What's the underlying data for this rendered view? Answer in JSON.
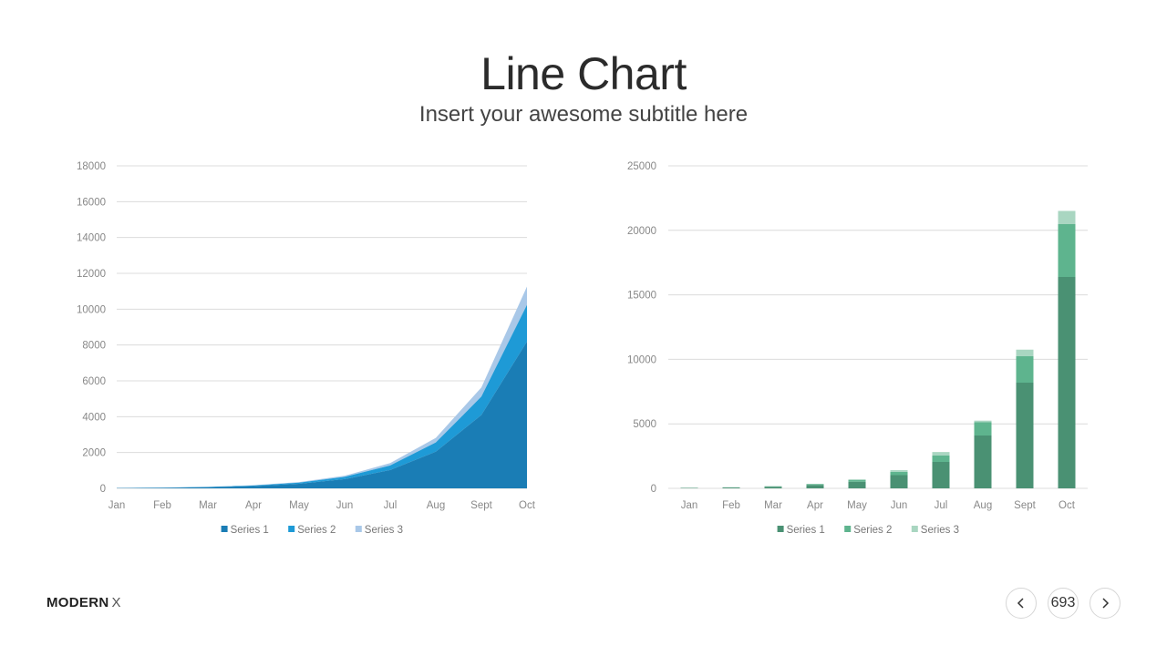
{
  "header": {
    "title": "Line Chart",
    "subtitle": "Insert your awesome subtitle here"
  },
  "footer": {
    "brand_bold": "MODERN",
    "brand_light": "X",
    "page_number": "693",
    "prev_icon": "chevron-left-icon",
    "next_icon": "chevron-right-icon"
  },
  "chart_data": [
    {
      "type": "area",
      "stacked": true,
      "categories": [
        "Jan",
        "Feb",
        "Mar",
        "Apr",
        "May",
        "Jun",
        "Jul",
        "Aug",
        "Sept",
        "Oct"
      ],
      "series": [
        {
          "name": "Series 1",
          "color": "#1a7db5",
          "values": [
            16,
            32,
            64,
            128,
            256,
            512,
            1024,
            2048,
            4096,
            8192
          ]
        },
        {
          "name": "Series 2",
          "color": "#1e9ad6",
          "values": [
            4,
            8,
            16,
            32,
            64,
            128,
            256,
            512,
            1024,
            2048
          ]
        },
        {
          "name": "Series 3",
          "color": "#a9c8e8",
          "values": [
            2,
            4,
            8,
            16,
            32,
            64,
            128,
            256,
            512,
            1024
          ]
        }
      ],
      "ylim": [
        0,
        18000
      ],
      "yticks": [
        0,
        2000,
        4000,
        6000,
        8000,
        10000,
        12000,
        14000,
        16000,
        18000
      ],
      "grid": true,
      "legend": "bottom"
    },
    {
      "type": "bar",
      "stacked": true,
      "categories": [
        "Jan",
        "Feb",
        "Mar",
        "Apr",
        "May",
        "Jun",
        "Jul",
        "Aug",
        "Sept",
        "Oct"
      ],
      "series": [
        {
          "name": "Series 1",
          "color": "#4a9173",
          "values": [
            32,
            64,
            128,
            256,
            512,
            1024,
            2048,
            4096,
            8192,
            16384
          ]
        },
        {
          "name": "Series 2",
          "color": "#5eb48e",
          "values": [
            8,
            16,
            32,
            64,
            128,
            256,
            512,
            1024,
            2048,
            4096
          ]
        },
        {
          "name": "Series 3",
          "color": "#a9d6c1",
          "values": [
            4,
            8,
            16,
            32,
            64,
            128,
            256,
            128,
            512,
            1024
          ]
        }
      ],
      "ylim": [
        0,
        25000
      ],
      "yticks": [
        0,
        5000,
        10000,
        15000,
        20000,
        25000
      ],
      "grid": true,
      "legend": "bottom"
    }
  ]
}
